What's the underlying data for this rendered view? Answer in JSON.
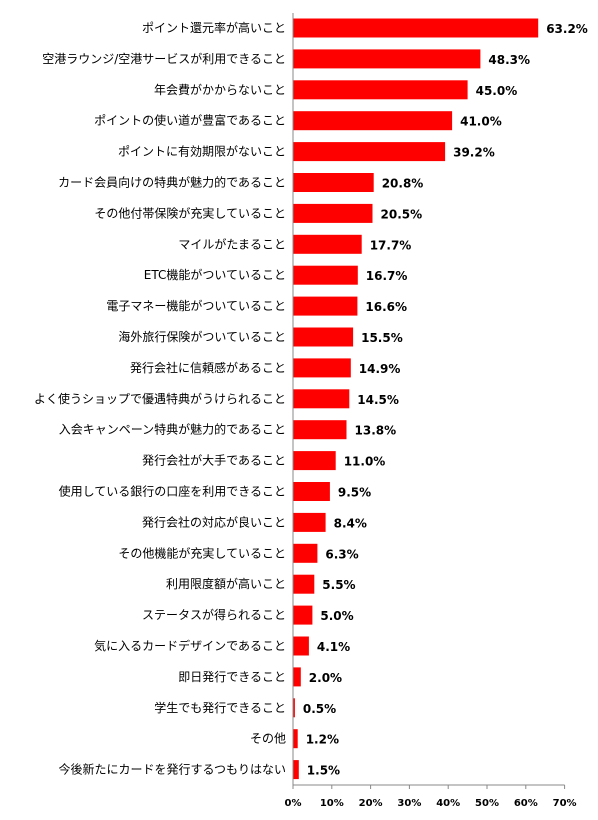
{
  "colors": {
    "bar": "#ff0000",
    "axis": "#888888",
    "text": "#000000"
  },
  "chart_data": {
    "type": "bar",
    "orientation": "horizontal",
    "title": "",
    "xlabel": "",
    "ylabel": "",
    "xlim": [
      0,
      70
    ],
    "grid": false,
    "x_ticks": [
      "0%",
      "10%",
      "20%",
      "30%",
      "40%",
      "50%",
      "60%",
      "70%"
    ],
    "x_tick_values": [
      0,
      10,
      20,
      30,
      40,
      50,
      60,
      70
    ],
    "categories": [
      "ポイント還元率が高いこと",
      "空港ラウンジ/空港サービスが利用できること",
      "年会費がかからないこと",
      "ポイントの使い道が豊富であること",
      "ポイントに有効期限がないこと",
      "カード会員向けの特典が魅力的であること",
      "その他付帯保険が充実していること",
      "マイルがたまること",
      "ETC機能がついていること",
      "電子マネー機能がついていること",
      "海外旅行保険がついていること",
      "発行会社に信頼感があること",
      "よく使うショップで優遇特典がうけられること",
      "入会キャンペーン特典が魅力的であること",
      "発行会社が大手であること",
      "使用している銀行の口座を利用できること",
      "発行会社の対応が良いこと",
      "その他機能が充実していること",
      "利用限度額が高いこと",
      "ステータスが得られること",
      "気に入るカードデザインであること",
      "即日発行できること",
      "学生でも発行できること",
      "その他",
      "今後新たにカードを発行するつもりはない"
    ],
    "values": [
      63.2,
      48.3,
      45.0,
      41.0,
      39.2,
      20.8,
      20.5,
      17.7,
      16.7,
      16.6,
      15.5,
      14.9,
      14.5,
      13.8,
      11.0,
      9.5,
      8.4,
      6.3,
      5.5,
      5.0,
      4.1,
      2.0,
      0.5,
      1.2,
      1.5
    ],
    "value_labels": [
      "63.2%",
      "48.3%",
      "45.0%",
      "41.0%",
      "39.2%",
      "20.8%",
      "20.5%",
      "17.7%",
      "16.7%",
      "16.6%",
      "15.5%",
      "14.9%",
      "14.5%",
      "13.8%",
      "11.0%",
      "9.5%",
      "8.4%",
      "6.3%",
      "5.5%",
      "5.0%",
      "4.1%",
      "2.0%",
      "0.5%",
      "1.2%",
      "1.5%"
    ]
  }
}
